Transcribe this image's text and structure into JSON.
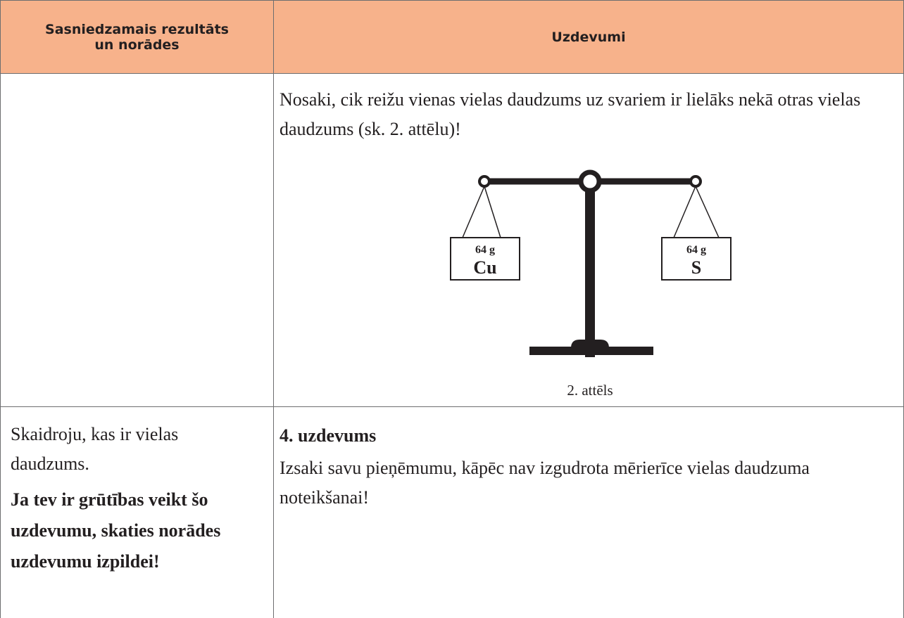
{
  "header": {
    "left": "Sasniedzamais rezultāts un norādes",
    "right": "Uzdevumi"
  },
  "rows": [
    {
      "task_text": "Nosaki, cik reižu vienas vielas daudzums uz svariem ir lielāks nekā otras vielas daudzums (sk. 2. attēlu)!",
      "figure": {
        "left_mass": "64 g",
        "left_substance": "Cu",
        "right_mass": "64 g",
        "right_substance": "S",
        "caption": "2. attēls"
      }
    },
    {
      "outcome": "Skaidroju, kas ir vielas daudzums.",
      "hint": "Ja tev ir grūtības veikt šo uzdevumu, skaties norādes uzdevumu izpildei!",
      "task_title": "4. uzdevums",
      "task_text": "Izsaki savu pieņēmumu, kāpēc nav izgudrota mērierīce vielas daudzuma noteikšanai!"
    }
  ]
}
